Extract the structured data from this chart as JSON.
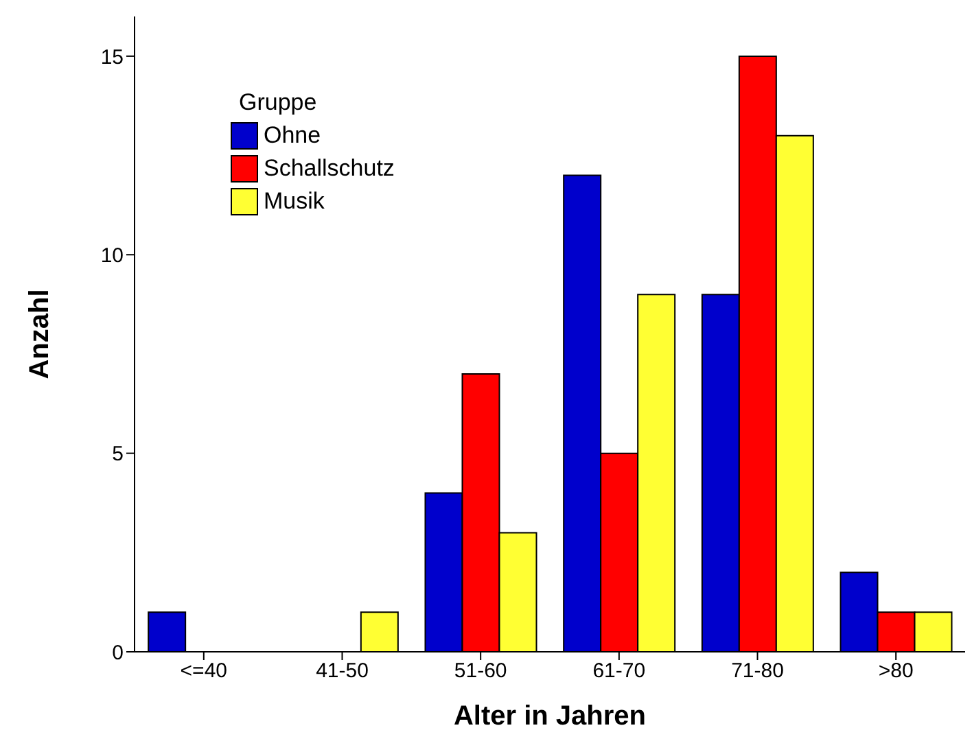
{
  "chart_data": {
    "type": "bar",
    "xlabel": "Alter in Jahren",
    "ylabel": "Anzahl",
    "legend_title": "Gruppe",
    "legend": "top left",
    "grid": false,
    "categories": [
      "<=40",
      "41-50",
      "51-60",
      "61-70",
      "71-80",
      ">80"
    ],
    "series": [
      {
        "name": "Ohne",
        "color": "#0000cc",
        "values": [
          1,
          0,
          4,
          12,
          9,
          2
        ]
      },
      {
        "name": "Schallschutz",
        "color": "#ff0000",
        "values": [
          0,
          0,
          7,
          5,
          15,
          1
        ]
      },
      {
        "name": "Musik",
        "color": "#ffff33",
        "values": [
          0,
          1,
          3,
          9,
          13,
          1
        ]
      }
    ],
    "ylim": [
      0,
      16
    ],
    "yticks": [
      0,
      5,
      10,
      15
    ]
  }
}
